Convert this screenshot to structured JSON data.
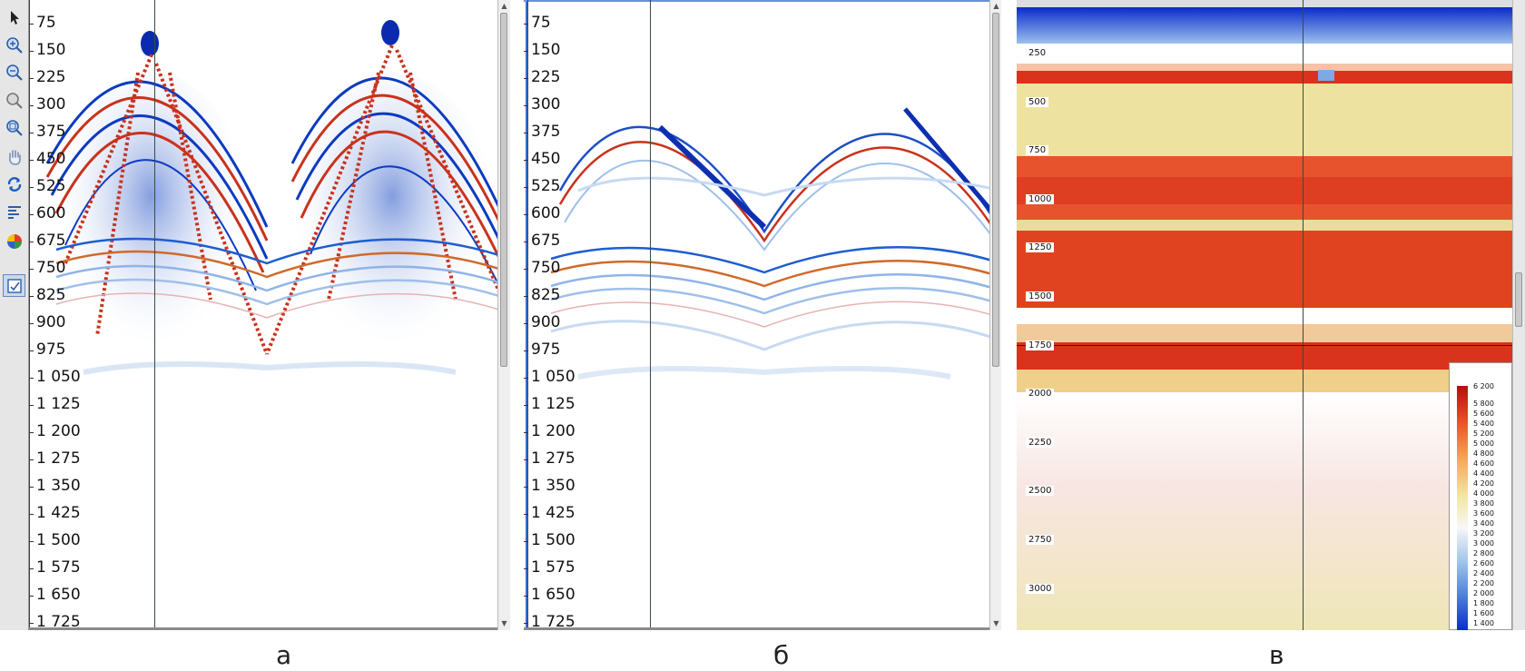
{
  "toolbar": {
    "tools": [
      {
        "icon": "pointer-icon",
        "active": false
      },
      {
        "icon": "zoom-in-icon",
        "active": false
      },
      {
        "icon": "zoom-out-icon",
        "active": false
      },
      {
        "icon": "zoom-fit-icon",
        "active": false
      },
      {
        "icon": "zoom-area-icon",
        "active": false
      },
      {
        "icon": "pan-hand-icon",
        "active": false
      },
      {
        "icon": "refresh-icon",
        "active": false
      },
      {
        "icon": "align-icon",
        "active": false
      },
      {
        "icon": "palette-icon",
        "active": false
      },
      {
        "icon": "export-icon",
        "active": true
      }
    ]
  },
  "depth_ticks": [
    "75",
    "150",
    "225",
    "300",
    "375",
    "450",
    "525",
    "600",
    "675",
    "750",
    "825",
    "900",
    "975",
    "1 050",
    "1 125",
    "1 200",
    "1 275",
    "1 350",
    "1 425",
    "1 500",
    "1 575",
    "1 650",
    "1 725"
  ],
  "velocity_panel": {
    "depth_ticks": [
      "250",
      "500",
      "750",
      "1000",
      "1250",
      "1500",
      "1750",
      "2000",
      "2250",
      "2500",
      "2750",
      "3000"
    ],
    "legend_values": [
      "6 200",
      "5 800",
      "5 600",
      "5 400",
      "5 200",
      "5 000",
      "4 800",
      "4 600",
      "4 400",
      "4 200",
      "4 000",
      "3 800",
      "3 600",
      "3 400",
      "3 200",
      "3 000",
      "2 800",
      "2 600",
      "2 400",
      "2 200",
      "2 000",
      "1 800",
      "1 600",
      "1 400"
    ],
    "colors": {
      "high": "#b50d0d",
      "mid": "#f4e6a4",
      "low": "#0a2bc8"
    }
  },
  "captions": {
    "a": "а",
    "b": "б",
    "v": "в"
  }
}
